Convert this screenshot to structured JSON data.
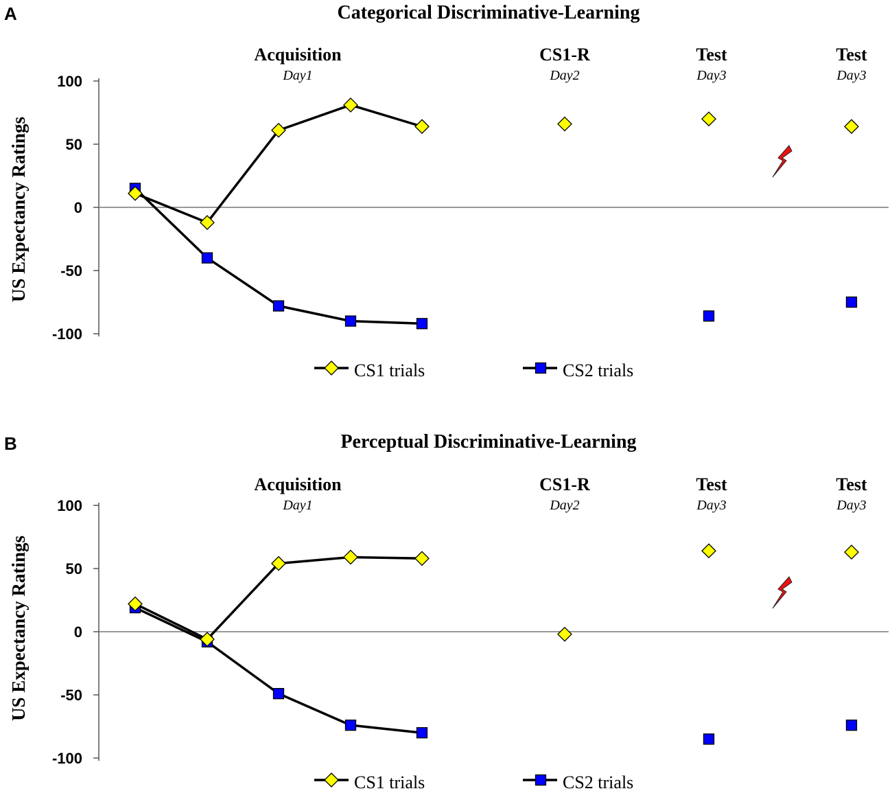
{
  "chart_data": [
    {
      "type": "line",
      "panel": "A",
      "title": "Categorical Discriminative-Learning",
      "ylabel": "US Expectancy Ratings",
      "xlabel": "",
      "ylim": [
        -100,
        100
      ],
      "yticks": [
        "100",
        "50",
        "0",
        "-50",
        "-100"
      ],
      "zero_line": true,
      "phases": [
        {
          "label": "Acquisition",
          "day": "Day1"
        },
        {
          "label": "CS1-R",
          "day": "Day2"
        },
        {
          "label": "Test",
          "day": "Day3"
        },
        {
          "label": "Test",
          "day": "Day3"
        }
      ],
      "series": [
        {
          "name": "CS1 trials",
          "marker": "diamond",
          "color": "#ffff00",
          "acquisition": [
            11,
            -12,
            61,
            81,
            64
          ],
          "cs1r": 66,
          "test1": 70,
          "test2": 64
        },
        {
          "name": "CS2 trials",
          "marker": "square",
          "color": "#0000ff",
          "acquisition": [
            15,
            -40,
            -78,
            -90,
            -92
          ],
          "cs1r": null,
          "test1": -86,
          "test2": -75
        }
      ],
      "annotation": "lightning-bolt"
    },
    {
      "type": "line",
      "panel": "B",
      "title": "Perceptual Discriminative-Learning",
      "ylabel": "US Expectancy Ratings",
      "xlabel": "",
      "ylim": [
        -100,
        100
      ],
      "yticks": [
        "100",
        "50",
        "0",
        "-50",
        "-100"
      ],
      "zero_line": true,
      "phases": [
        {
          "label": "Acquisition",
          "day": "Day1"
        },
        {
          "label": "CS1-R",
          "day": "Day2"
        },
        {
          "label": "Test",
          "day": "Day3"
        },
        {
          "label": "Test",
          "day": "Day3"
        }
      ],
      "series": [
        {
          "name": "CS1 trials",
          "marker": "diamond",
          "color": "#ffff00",
          "acquisition": [
            22,
            -6,
            54,
            59,
            58
          ],
          "cs1r": -2,
          "test1": 64,
          "test2": 63
        },
        {
          "name": "CS2 trials",
          "marker": "square",
          "color": "#0000ff",
          "acquisition": [
            19,
            -8,
            -49,
            -74,
            -80
          ],
          "cs1r": null,
          "test1": -85,
          "test2": -74
        }
      ],
      "annotation": "lightning-bolt"
    }
  ]
}
